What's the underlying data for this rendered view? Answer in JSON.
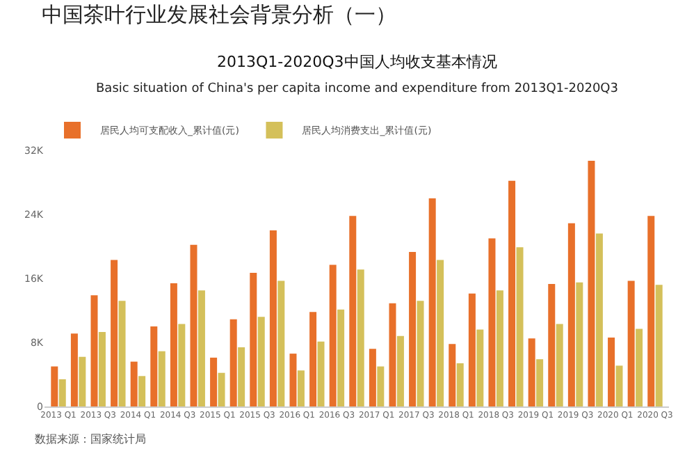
{
  "chart_data": {
    "type": "bar",
    "title": "中国茶叶行业发展社会背景分析（一）",
    "subtitle": "2013Q1-2020Q3中国人均收支基本情况",
    "annotations": [
      "Basic situation of China's per capita income and expenditure from 2013Q1-2020Q3",
      "数据来源：国家统计局"
    ],
    "categories": [
      "2013 Q1",
      null,
      "2013 Q3",
      null,
      "2014 Q1",
      null,
      "2014 Q3",
      null,
      "2015 Q1",
      null,
      "2015 Q3",
      null,
      "2016 Q1",
      null,
      "2016 Q3",
      null,
      "2017 Q1",
      null,
      "2017 Q3",
      null,
      "2018 Q1",
      null,
      "2018 Q3",
      null,
      "2019 Q1",
      null,
      "2019 Q3",
      null,
      "2020 Q1",
      null,
      "2020 Q3"
    ],
    "series": [
      {
        "name": "居民人均可支配收入_累计值(元)",
        "color": "#e8702a",
        "values": [
          5000,
          9100,
          13900,
          18300,
          5600,
          10000,
          15400,
          20200,
          6100,
          10900,
          16700,
          22000,
          6600,
          11800,
          17700,
          23800,
          7200,
          12900,
          19300,
          26000,
          7800,
          14100,
          21000,
          28200,
          8500,
          15300,
          22900,
          30700,
          8600,
          15700,
          23800
        ]
      },
      {
        "name": "居民人均消费支出_累计值(元)",
        "color": "#d4c05a",
        "values": [
          3400,
          6200,
          9300,
          13200,
          3800,
          6900,
          10300,
          14500,
          4200,
          7400,
          11200,
          15700,
          4500,
          8100,
          12100,
          17100,
          5000,
          8800,
          13200,
          18300,
          5400,
          9600,
          14500,
          19900,
          5900,
          10300,
          15500,
          21600,
          5100,
          9700,
          15200
        ]
      }
    ],
    "ylim": [
      0,
      32000
    ],
    "yticks": [
      0,
      {
        "value": 8000,
        "label": "8K"
      },
      {
        "value": 16000,
        "label": "16K"
      },
      {
        "value": 24000,
        "label": "24K"
      },
      {
        "value": 32000,
        "label": "32K"
      }
    ],
    "grid": false,
    "legend": "top left"
  }
}
